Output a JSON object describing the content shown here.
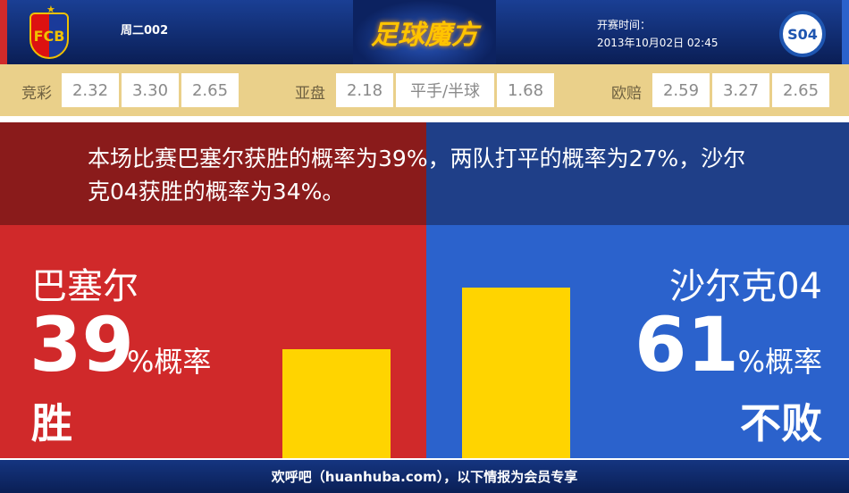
{
  "header": {
    "match_no": "周二002",
    "brand": "足球魔方",
    "kickoff_label": "开赛时间：",
    "kickoff_time": "2013年10月02日 02:45",
    "home_crest": "FCB",
    "away_crest": "S04"
  },
  "odds": {
    "jingcai": {
      "label": "竞彩",
      "values": [
        "2.32",
        "3.30",
        "2.65"
      ]
    },
    "yapan": {
      "label": "亚盘",
      "values": [
        "2.18",
        "平手/半球",
        "1.68"
      ]
    },
    "oupei": {
      "label": "欧赔",
      "values": [
        "2.59",
        "3.27",
        "2.65"
      ]
    }
  },
  "summary": "本场比赛巴塞尔获胜的概率为39%，两队打平的概率为27%，沙尔克04获胜的概率为34%。",
  "home": {
    "name": "巴塞尔",
    "percent": "39",
    "percent_label": "%概率",
    "result": "胜",
    "value": 39
  },
  "away": {
    "name": "沙尔克04",
    "percent": "61",
    "percent_label": "%概率",
    "result": "不败",
    "value": 61
  },
  "colors": {
    "home": "#d0292a",
    "away": "#2b62cc",
    "bar": "#ffd400"
  },
  "footer": "欢呼吧（huanhuba.com），以下情报为会员专享"
}
